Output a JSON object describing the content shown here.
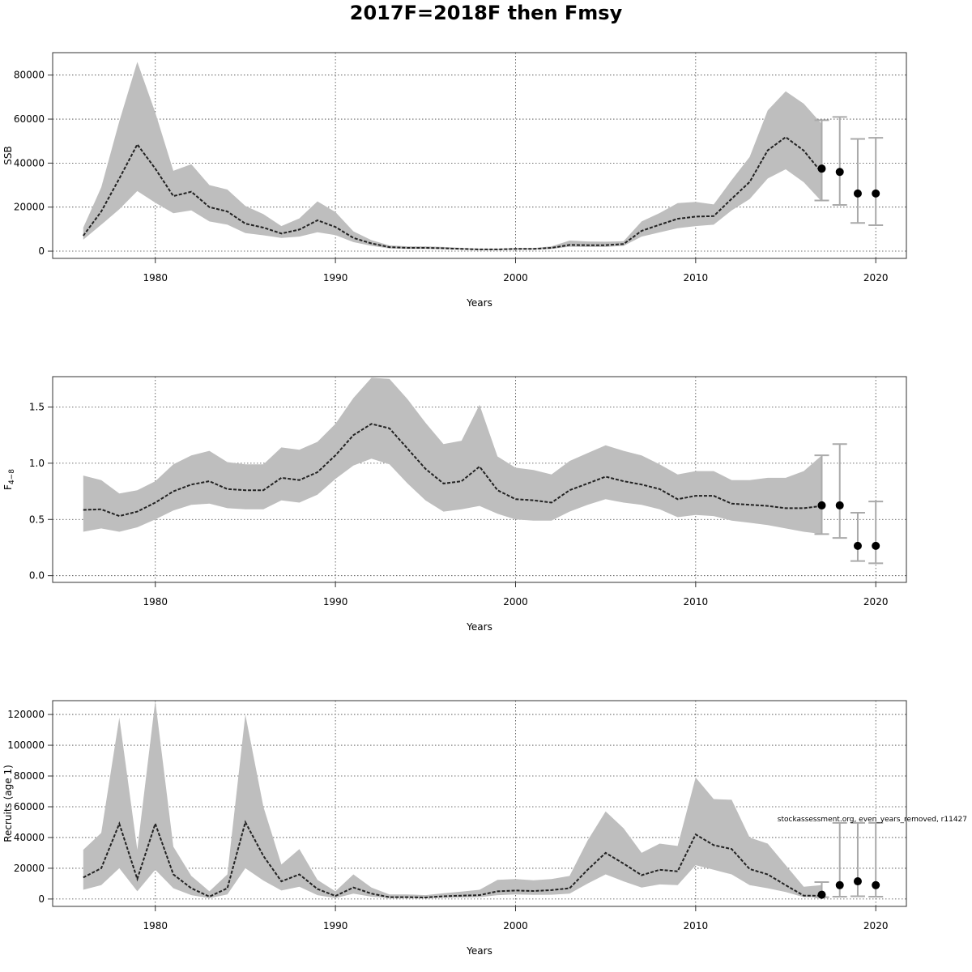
{
  "title": "2017F=2018F then Fmsy",
  "note": "stockassessment.org, even_years_removed, r11427",
  "chart_data": [
    {
      "type": "area",
      "name": "ssb",
      "xlabel": "Years",
      "ylabel": "SSB",
      "xlim": [
        1974.3,
        2021.7
      ],
      "ylim": [
        -3300,
        90200
      ],
      "xticks": [
        "1980",
        "1990",
        "2000",
        "2010",
        "2020"
      ],
      "yticks": [
        "0",
        "20000",
        "40000",
        "60000",
        "80000"
      ],
      "grid": true,
      "years": [
        1976,
        1977,
        1978,
        1979,
        1980,
        1981,
        1982,
        1983,
        1984,
        1985,
        1986,
        1987,
        1988,
        1989,
        1990,
        1991,
        1992,
        1993,
        1994,
        1995,
        1996,
        1997,
        1998,
        1999,
        2000,
        2001,
        2002,
        2003,
        2004,
        2005,
        2006,
        2007,
        2008,
        2009,
        2010,
        2011,
        2012,
        2013,
        2014,
        2015,
        2016,
        2017
      ],
      "estimate": [
        7000,
        18000,
        33000,
        48500,
        37500,
        25000,
        27000,
        20000,
        18000,
        12500,
        10700,
        8000,
        9800,
        14000,
        11000,
        6000,
        3500,
        1800,
        1500,
        1500,
        1300,
        1000,
        800,
        800,
        1000,
        1000,
        1500,
        2800,
        2700,
        2700,
        3200,
        9200,
        12000,
        14700,
        15700,
        15900,
        23800,
        31400,
        45800,
        51800,
        45700,
        35600
      ],
      "low": [
        5200,
        12000,
        19000,
        27300,
        22000,
        17200,
        18500,
        13500,
        12000,
        8200,
        7200,
        6000,
        6600,
        8600,
        7300,
        4100,
        2400,
        1200,
        1000,
        1000,
        900,
        700,
        500,
        500,
        700,
        700,
        1000,
        2000,
        1900,
        1900,
        2400,
        6600,
        8500,
        10400,
        11400,
        12000,
        18500,
        23700,
        33000,
        37200,
        31300,
        22500
      ],
      "high": [
        10700,
        29000,
        59000,
        86000,
        63000,
        36500,
        39500,
        30000,
        28000,
        20500,
        16800,
        11400,
        14900,
        22600,
        17800,
        9000,
        5000,
        2600,
        2200,
        2200,
        1900,
        1500,
        1100,
        1100,
        1400,
        1400,
        2200,
        4800,
        4400,
        4300,
        4500,
        13500,
        17300,
        21800,
        22400,
        21200,
        32300,
        42800,
        64000,
        72600,
        67000,
        57800
      ],
      "projection_years": [
        2017,
        2018,
        2019,
        2020
      ],
      "projection_median": [
        37500,
        36000,
        26200,
        26200
      ],
      "projection_low": [
        23000,
        21000,
        12800,
        11800
      ],
      "projection_high": [
        59500,
        61000,
        51000,
        51500
      ]
    },
    {
      "type": "area",
      "name": "fbar",
      "xlabel": "Years",
      "ylabel": "F",
      "ylabel_subscript": "4−8",
      "xlim": [
        1974.3,
        2021.7
      ],
      "ylim": [
        -0.06,
        1.77
      ],
      "xticks": [
        "1980",
        "1990",
        "2000",
        "2010",
        "2020"
      ],
      "yticks": [
        "0.0",
        "0.5",
        "1.0",
        "1.5"
      ],
      "grid": true,
      "years": [
        1976,
        1977,
        1978,
        1979,
        1980,
        1981,
        1982,
        1983,
        1984,
        1985,
        1986,
        1987,
        1988,
        1989,
        1990,
        1991,
        1992,
        1993,
        1994,
        1995,
        1996,
        1997,
        1998,
        1999,
        2000,
        2001,
        2002,
        2003,
        2004,
        2005,
        2006,
        2007,
        2008,
        2009,
        2010,
        2011,
        2012,
        2013,
        2014,
        2015,
        2016,
        2017
      ],
      "estimate": [
        0.585,
        0.59,
        0.53,
        0.57,
        0.65,
        0.75,
        0.81,
        0.84,
        0.77,
        0.76,
        0.76,
        0.87,
        0.85,
        0.92,
        1.07,
        1.25,
        1.35,
        1.31,
        1.13,
        0.95,
        0.82,
        0.84,
        0.97,
        0.76,
        0.68,
        0.67,
        0.65,
        0.76,
        0.82,
        0.88,
        0.84,
        0.81,
        0.77,
        0.68,
        0.71,
        0.71,
        0.64,
        0.63,
        0.62,
        0.6,
        0.6,
        0.62
      ],
      "low": [
        0.39,
        0.42,
        0.39,
        0.43,
        0.5,
        0.58,
        0.63,
        0.64,
        0.6,
        0.59,
        0.59,
        0.67,
        0.65,
        0.72,
        0.86,
        0.98,
        1.04,
        0.99,
        0.82,
        0.67,
        0.57,
        0.59,
        0.62,
        0.55,
        0.5,
        0.49,
        0.49,
        0.57,
        0.63,
        0.68,
        0.65,
        0.63,
        0.59,
        0.52,
        0.54,
        0.53,
        0.49,
        0.47,
        0.45,
        0.42,
        0.39,
        0.37
      ],
      "high": [
        0.89,
        0.85,
        0.73,
        0.76,
        0.84,
        0.99,
        1.07,
        1.11,
        1.01,
        0.99,
        0.99,
        1.14,
        1.12,
        1.19,
        1.35,
        1.58,
        1.76,
        1.75,
        1.57,
        1.36,
        1.17,
        1.2,
        1.52,
        1.06,
        0.96,
        0.94,
        0.9,
        1.02,
        1.09,
        1.16,
        1.11,
        1.07,
        0.99,
        0.9,
        0.93,
        0.93,
        0.85,
        0.85,
        0.87,
        0.87,
        0.93,
        1.07
      ],
      "projection_years": [
        2017,
        2018,
        2019,
        2020
      ],
      "projection_median": [
        0.625,
        0.625,
        0.265,
        0.265
      ],
      "projection_low": [
        0.37,
        0.335,
        0.13,
        0.11
      ],
      "projection_high": [
        1.07,
        1.17,
        0.56,
        0.66
      ]
    },
    {
      "type": "area",
      "name": "recruits",
      "xlabel": "Years",
      "ylabel": "Recruits (age 1)",
      "xlim": [
        1974.3,
        2021.7
      ],
      "ylim": [
        -4800,
        129000
      ],
      "xticks": [
        "1980",
        "1990",
        "2000",
        "2010",
        "2020"
      ],
      "yticks": [
        "0",
        "20000",
        "40000",
        "60000",
        "80000",
        "100000",
        "120000"
      ],
      "grid": true,
      "years": [
        1976,
        1977,
        1978,
        1979,
        1980,
        1981,
        1982,
        1983,
        1984,
        1985,
        1986,
        1987,
        1988,
        1989,
        1990,
        1991,
        1992,
        1993,
        1994,
        1995,
        1996,
        1997,
        1998,
        1999,
        2000,
        2001,
        2002,
        2003,
        2004,
        2005,
        2006,
        2007,
        2008,
        2009,
        2010,
        2011,
        2012,
        2013,
        2014,
        2015,
        2016,
        2017
      ],
      "estimate": [
        14000,
        20000,
        49000,
        13000,
        49000,
        16000,
        7000,
        1600,
        7000,
        50000,
        28000,
        11500,
        16000,
        6500,
        2000,
        7500,
        3500,
        1200,
        1200,
        1000,
        1800,
        2200,
        2500,
        5000,
        5500,
        5200,
        5800,
        7000,
        19000,
        30000,
        23000,
        15500,
        19000,
        18000,
        42000,
        35000,
        32500,
        19500,
        16000,
        9000,
        2200,
        2100
      ],
      "low": [
        6000,
        9000,
        20000,
        5000,
        19000,
        7000,
        2500,
        500,
        3000,
        20000,
        12000,
        5500,
        8000,
        2500,
        600,
        3500,
        1500,
        500,
        500,
        400,
        800,
        1000,
        1200,
        2500,
        3000,
        2700,
        2800,
        3500,
        10000,
        16000,
        11500,
        7500,
        9500,
        9000,
        22000,
        19000,
        16000,
        9000,
        7000,
        4500,
        1200,
        1000
      ],
      "high": [
        32000,
        43000,
        118000,
        32000,
        129000,
        34000,
        15000,
        5000,
        16000,
        120000,
        60000,
        22500,
        32500,
        12500,
        5000,
        16000,
        7500,
        3000,
        3000,
        2500,
        3800,
        4800,
        6000,
        12500,
        13000,
        12200,
        13000,
        15000,
        38000,
        57000,
        46000,
        30000,
        36000,
        34500,
        79000,
        65000,
        64500,
        40000,
        36000,
        22000,
        8000,
        9000
      ],
      "projection_years": [
        2017,
        2018,
        2019,
        2020
      ],
      "projection_median": [
        2800,
        9000,
        11500,
        9000
      ],
      "projection_low": [
        1200,
        1500,
        1800,
        1500
      ],
      "projection_high": [
        11000,
        49500,
        49500,
        49500
      ]
    }
  ]
}
